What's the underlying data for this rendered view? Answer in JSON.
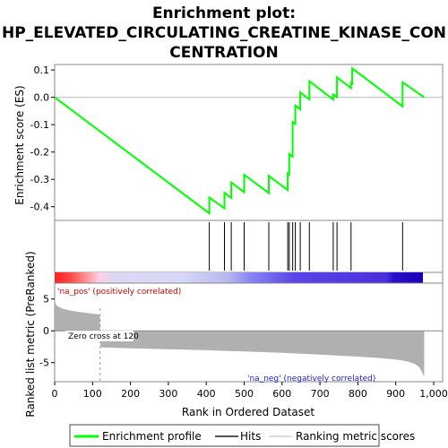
{
  "chart_data": {
    "type": "line",
    "title_line1": "Enrichment plot:",
    "title_line2": "HP_ELEVATED_CIRCULATING_CREATINE_KINASE_CON",
    "title_line3": "CENTRATION",
    "es_ylabel": "Enrichment score (ES)",
    "es_ylim": [
      -0.45,
      0.12
    ],
    "es_yticks": [
      0.1,
      0.0,
      -0.1,
      -0.2,
      -0.3,
      -0.4
    ],
    "es_ytick_labels": [
      "0.1",
      "0.0",
      "-0.1",
      "-0.2",
      "-0.3",
      "-0.4"
    ],
    "xlim": [
      0,
      1000
    ],
    "xticks": [
      0,
      100,
      200,
      300,
      400,
      500,
      600,
      700,
      800,
      900,
      1000
    ],
    "xtick_labels": [
      "0",
      "100",
      "200",
      "300",
      "400",
      "500",
      "600",
      "700",
      "800",
      "900",
      "1,000"
    ],
    "xlabel": "Rank in Ordered Dataset",
    "n_genes": 975,
    "es_profile": {
      "x": [
        0,
        408,
        408,
        448,
        448,
        466,
        466,
        500,
        500,
        565,
        565,
        615,
        615,
        619,
        619,
        628,
        628,
        635,
        635,
        648,
        648,
        672,
        672,
        735,
        735,
        745,
        745,
        782,
        782,
        785,
        785,
        918,
        918,
        975
      ],
      "y": [
        0.0,
        -0.424,
        -0.366,
        -0.406,
        -0.349,
        -0.368,
        -0.311,
        -0.347,
        -0.283,
        -0.35,
        -0.287,
        -0.339,
        -0.278,
        -0.282,
        -0.207,
        -0.217,
        -0.09,
        -0.097,
        -0.03,
        -0.044,
        0.018,
        -0.008,
        0.059,
        -0.008,
        0.011,
        0.001,
        0.073,
        0.034,
        0.053,
        0.05,
        0.106,
        -0.033,
        0.055,
        0.0
      ]
    },
    "hits": [
      408,
      448,
      466,
      500,
      565,
      615,
      619,
      628,
      635,
      648,
      672,
      735,
      745,
      782,
      918
    ],
    "metric_ylabel": "Ranked list metric (PreRanked)",
    "metric_ylim": [
      -8,
      7.5
    ],
    "metric_yticks": [
      5,
      0,
      -5
    ],
    "metric_ytick_labels": [
      "5",
      "0",
      "-5"
    ],
    "metric_curve": {
      "x": [
        0,
        2,
        5,
        10,
        20,
        40,
        60,
        80,
        100,
        115,
        119,
        120,
        121,
        124,
        200,
        300,
        400,
        500,
        600,
        700,
        800,
        850,
        900,
        930,
        950,
        960,
        965,
        970,
        975
      ],
      "y": [
        5.2,
        4.4,
        4.0,
        3.8,
        3.5,
        3.2,
        3.0,
        2.85,
        2.7,
        2.6,
        2.5,
        0.0,
        -2.5,
        -2.6,
        -2.75,
        -2.9,
        -3.05,
        -3.25,
        -3.45,
        -3.75,
        -4.05,
        -4.25,
        -4.5,
        -4.8,
        -5.2,
        -5.6,
        -6.0,
        -6.6,
        -7.2
      ]
    },
    "zero_cross": 120,
    "zero_cross_label": "Zero cross at 120",
    "pos_label": "'na_pos' (positively correlated)",
    "neg_label": "'na_neg' (negatively correlated)",
    "legend": [
      {
        "label": "Enrichment profile",
        "color": "#00ff00"
      },
      {
        "label": "Hits",
        "color": "#555555"
      },
      {
        "label": "Ranking metric scores",
        "color": "#dddddd"
      }
    ],
    "colors": {
      "es_line": "#00ff00",
      "hits": "#000000",
      "metric_fill": "#b0b0b0",
      "pos_text": "#cc0000",
      "neg_text": "#2222cc"
    }
  }
}
